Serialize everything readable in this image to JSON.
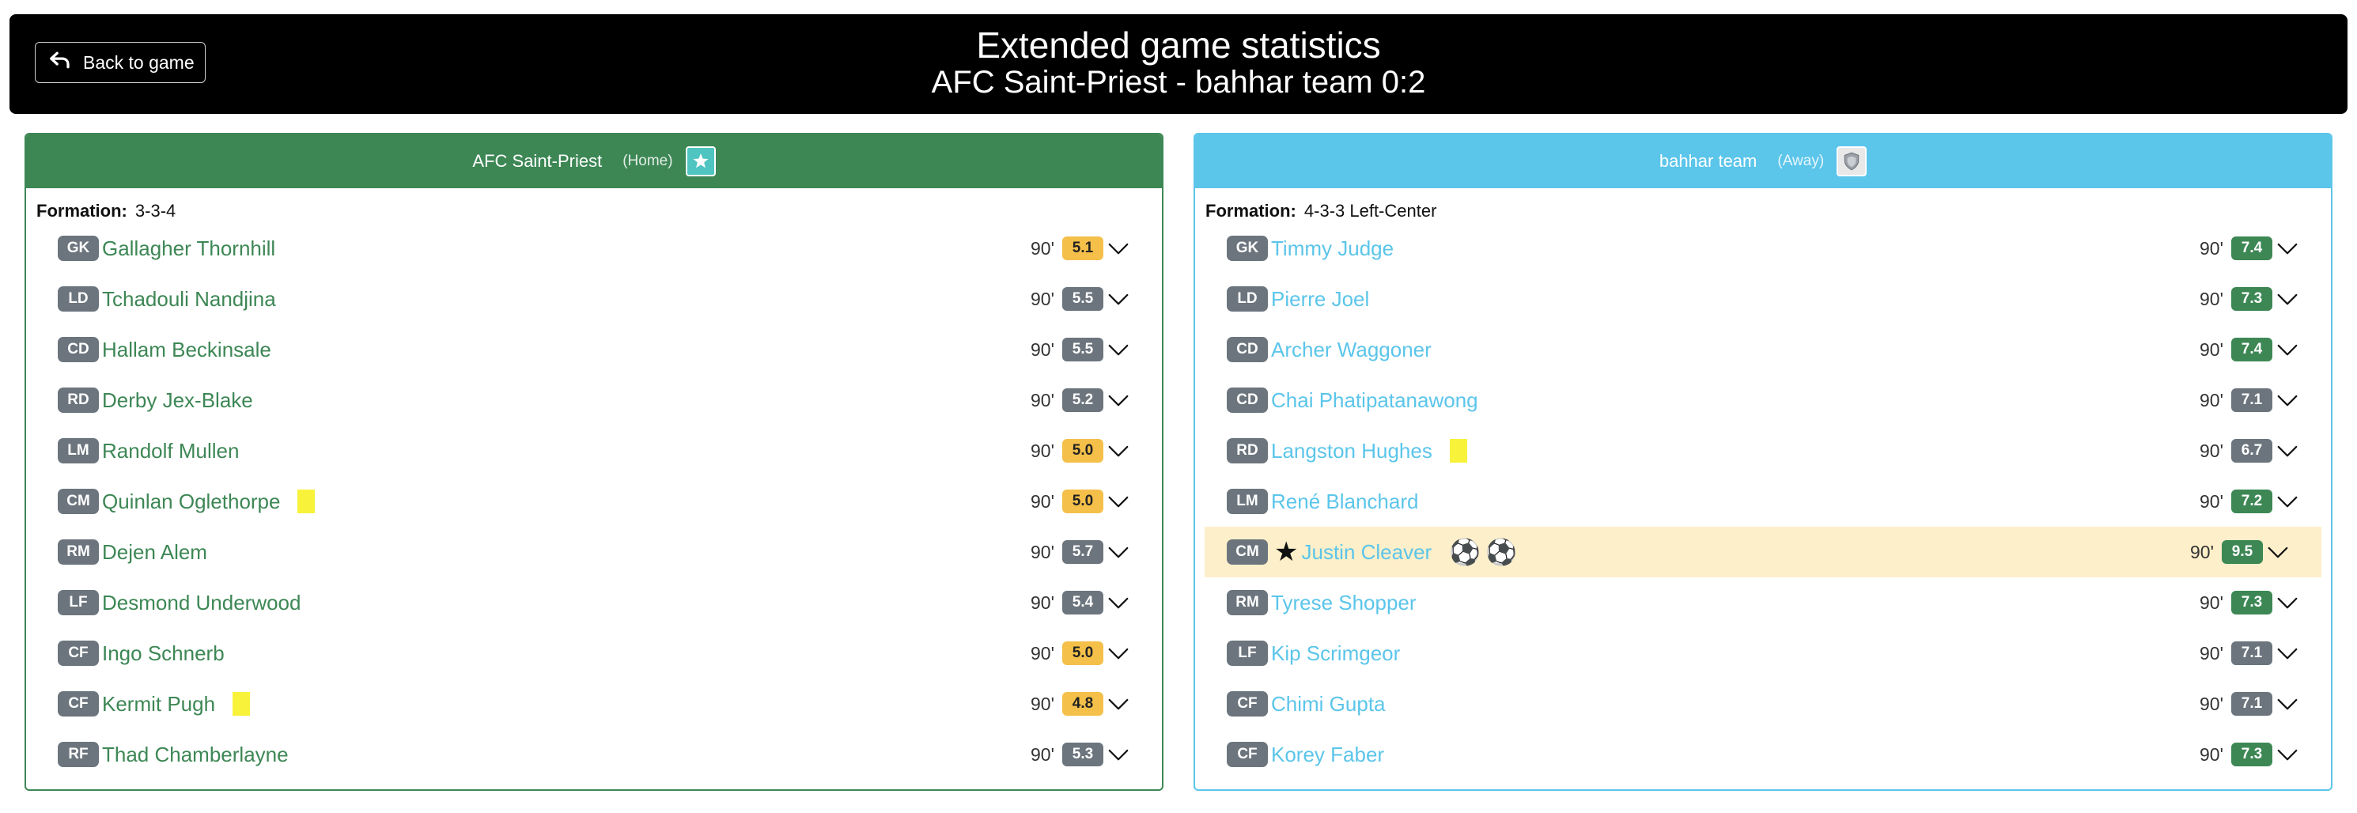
{
  "header": {
    "back_label": "Back to game",
    "title": "Extended game statistics",
    "subtitle": "AFC Saint-Priest - bahhar team 0:2"
  },
  "home": {
    "team_name": "AFC Saint-Priest",
    "side": "(Home)",
    "formation_label": "Formation:",
    "formation": "3-3-4",
    "players": [
      {
        "pos": "GK",
        "name": "Gallagher Thornhill",
        "mins": "90'",
        "rating": "5.1",
        "rating_color": "yellow"
      },
      {
        "pos": "LD",
        "name": "Tchadouli Nandjina",
        "mins": "90'",
        "rating": "5.5",
        "rating_color": "grey"
      },
      {
        "pos": "CD",
        "name": "Hallam Beckinsale",
        "mins": "90'",
        "rating": "5.5",
        "rating_color": "grey"
      },
      {
        "pos": "RD",
        "name": "Derby Jex-Blake",
        "mins": "90'",
        "rating": "5.2",
        "rating_color": "grey"
      },
      {
        "pos": "LM",
        "name": "Randolf Mullen",
        "mins": "90'",
        "rating": "5.0",
        "rating_color": "yellow"
      },
      {
        "pos": "CM",
        "name": "Quinlan Oglethorpe",
        "mins": "90'",
        "rating": "5.0",
        "rating_color": "yellow",
        "yellow_card": true
      },
      {
        "pos": "RM",
        "name": "Dejen Alem",
        "mins": "90'",
        "rating": "5.7",
        "rating_color": "grey"
      },
      {
        "pos": "LF",
        "name": "Desmond Underwood",
        "mins": "90'",
        "rating": "5.4",
        "rating_color": "grey"
      },
      {
        "pos": "CF",
        "name": "Ingo Schnerb",
        "mins": "90'",
        "rating": "5.0",
        "rating_color": "yellow"
      },
      {
        "pos": "CF",
        "name": "Kermit Pugh",
        "mins": "90'",
        "rating": "4.8",
        "rating_color": "yellow",
        "yellow_card": true
      },
      {
        "pos": "RF",
        "name": "Thad Chamberlayne",
        "mins": "90'",
        "rating": "5.3",
        "rating_color": "grey"
      }
    ]
  },
  "away": {
    "team_name": "bahhar team",
    "side": "(Away)",
    "formation_label": "Formation:",
    "formation": "4-3-3 Left-Center",
    "players": [
      {
        "pos": "GK",
        "name": "Timmy Judge",
        "mins": "90'",
        "rating": "7.4",
        "rating_color": "green"
      },
      {
        "pos": "LD",
        "name": "Pierre Joel",
        "mins": "90'",
        "rating": "7.3",
        "rating_color": "green"
      },
      {
        "pos": "CD",
        "name": "Archer Waggoner",
        "mins": "90'",
        "rating": "7.4",
        "rating_color": "green"
      },
      {
        "pos": "CD",
        "name": "Chai Phatipatanawong",
        "mins": "90'",
        "rating": "7.1",
        "rating_color": "grey"
      },
      {
        "pos": "RD",
        "name": "Langston Hughes",
        "mins": "90'",
        "rating": "6.7",
        "rating_color": "grey",
        "yellow_card": true
      },
      {
        "pos": "LM",
        "name": "René Blanchard",
        "mins": "90'",
        "rating": "7.2",
        "rating_color": "green"
      },
      {
        "pos": "CM",
        "name": "Justin Cleaver",
        "mins": "90'",
        "rating": "9.5",
        "rating_color": "green",
        "star": true,
        "goals": 2
      },
      {
        "pos": "RM",
        "name": "Tyrese Shopper",
        "mins": "90'",
        "rating": "7.3",
        "rating_color": "green"
      },
      {
        "pos": "LF",
        "name": "Kip Scrimgeor",
        "mins": "90'",
        "rating": "7.1",
        "rating_color": "grey"
      },
      {
        "pos": "CF",
        "name": "Chimi Gupta",
        "mins": "90'",
        "rating": "7.1",
        "rating_color": "grey"
      },
      {
        "pos": "CF",
        "name": "Korey Faber",
        "mins": "90'",
        "rating": "7.3",
        "rating_color": "green"
      }
    ]
  },
  "colors": {
    "home_accent": "#3d8755",
    "away_accent": "#5bc5ea",
    "highlight_row": "#fdefc9",
    "yellow_card": "#f8f33a"
  }
}
